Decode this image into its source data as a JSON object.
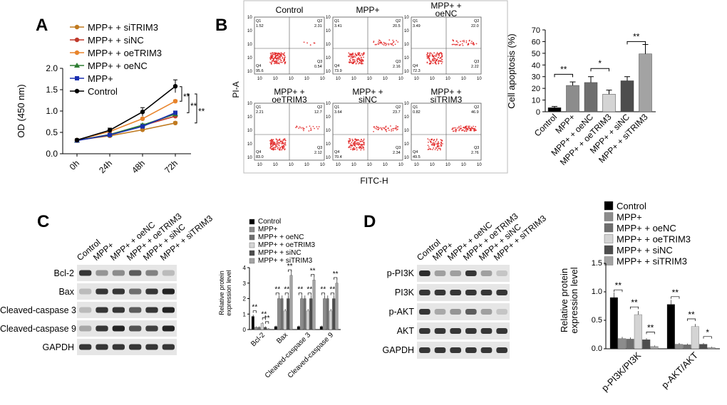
{
  "panels": {
    "a": "A",
    "b": "B",
    "c": "C",
    "d": "D"
  },
  "panel_a": {
    "legend": [
      "MPP+ + siTRIM3",
      "MPP+ + siNC",
      "MPP+ + oeTRIM3",
      "MPP+ + oeNC",
      "MPP+",
      "Control"
    ],
    "sig": [
      "**",
      "**",
      "**"
    ]
  },
  "panel_b": {
    "flow_titles": [
      "Control",
      "MPP+",
      "MPP+ + oeNC",
      "MPP+ + oeTRIM3",
      "MPP+ + siNC",
      "MPP+ + siTRIM3"
    ],
    "quadrants": [
      [
        "1.52",
        "2.31",
        "95.6",
        "0.54"
      ],
      [
        "3.41",
        "20.5",
        "73.9",
        "2.16"
      ],
      [
        "3.49",
        "22.0",
        "72.3",
        "2.22"
      ],
      [
        "2.21",
        "12.7",
        "83.0",
        "2.12"
      ],
      [
        "3.64",
        "23.7",
        "70.4",
        "2.34"
      ],
      [
        "0.82",
        "46.9",
        "49.5",
        "2.76"
      ]
    ],
    "quad_labels": [
      "Q1",
      "Q2",
      "Q4",
      "Q3"
    ],
    "y_axis": "PI-A",
    "x_axis": "FITC-H",
    "sig": [
      "**",
      "*",
      "**"
    ]
  },
  "panel_c": {
    "lanes": [
      "Control",
      "MPP+",
      "MPP+ + oeNC",
      "MPP+ + oeTRIM3",
      "MPP+ + siNC",
      "MPP+ + siTRIM3"
    ],
    "blots": [
      "Bcl-2",
      "Bax",
      "Cleaved-caspase 3",
      "Cleaved-caspase 9",
      "GAPDH"
    ],
    "legend": [
      "Control",
      "MPP+",
      "MPP+ + oeNC",
      "MPP+ + oeTRIM3",
      "MPP+ + siNC",
      "MPP+ + siTRIM3"
    ]
  },
  "panel_d": {
    "lanes": [
      "Control",
      "MPP+",
      "MPP+ + oeNC",
      "MPP+ + oeTRIM3",
      "MPP+ + siNC",
      "MPP+ + siTRIM3"
    ],
    "blots": [
      "p-PI3K",
      "PI3K",
      "p-AKT",
      "AKT",
      "GAPDH"
    ],
    "legend": [
      "Control",
      "MPP+",
      "MPP+ + oeNC",
      "MPP+ + oeTRIM3",
      "MPP+ + siNC",
      "MPP+ + siTRIM3"
    ]
  },
  "colors": {
    "control": "#000000",
    "mpp": "#8c8c8c",
    "oenc": "#6e6e6e",
    "oetrim3": "#d4d4d4",
    "sinc": "#4d4d4d",
    "sitrim3": "#a3a3a3",
    "line_sitrim3": "#c07a20",
    "line_sinc": "#c0392b",
    "line_oetrim3": "#e8842c",
    "line_oenc": "#2e7d32",
    "line_mpp": "#1a2fb0",
    "line_control": "#000000",
    "flow_dot": "#e02020"
  },
  "chart_data": [
    {
      "type": "line",
      "title": "",
      "xlabel": "",
      "ylabel": "OD (450 nm)",
      "categories": [
        "0h",
        "24h",
        "48h",
        "72h"
      ],
      "ylim": [
        0,
        2.0
      ],
      "yticks": [
        "0.0",
        "0.5",
        "1.0",
        "1.5",
        "2.0"
      ],
      "series": [
        {
          "name": "MPP+ + siTRIM3",
          "values": [
            0.32,
            0.42,
            0.56,
            0.72
          ]
        },
        {
          "name": "MPP+ + siNC",
          "values": [
            0.31,
            0.45,
            0.66,
            0.88
          ]
        },
        {
          "name": "MPP+ + oeTRIM3",
          "values": [
            0.32,
            0.52,
            0.82,
            1.23
          ]
        },
        {
          "name": "MPP+ + oeNC",
          "values": [
            0.31,
            0.45,
            0.67,
            0.93
          ]
        },
        {
          "name": "MPP+",
          "values": [
            0.31,
            0.44,
            0.64,
            0.96
          ]
        },
        {
          "name": "Control",
          "values": [
            0.32,
            0.55,
            0.98,
            1.58
          ]
        }
      ]
    },
    {
      "type": "bar",
      "title": "",
      "xlabel": "",
      "ylabel": "Cell apoptosis (%)",
      "categories": [
        "Control",
        "MPP+",
        "MPP+ + oeNC",
        "MPP+ + oeTRIM3",
        "MPP+ + siNC",
        "MPP+ + siTRIM3"
      ],
      "values": [
        3.5,
        22.5,
        25,
        15,
        26.5,
        49.5
      ],
      "errors": [
        1,
        3,
        5,
        3.5,
        3.5,
        8
      ],
      "ylim": [
        0,
        70
      ],
      "yticks": [
        "0",
        "10",
        "20",
        "30",
        "40",
        "50",
        "60",
        "70"
      ]
    },
    {
      "type": "bar",
      "title": "",
      "xlabel": "",
      "ylabel": "Relative protein expression level",
      "categories": [
        "Bcl-2",
        "Bax",
        "Cleaved-caspase 3",
        "Cleaved-caspase 9"
      ],
      "ylim": [
        0,
        4
      ],
      "yticks": [
        "0",
        "1",
        "2",
        "3",
        "4"
      ],
      "series": [
        {
          "name": "Control",
          "values": [
            0.85,
            0.2,
            0.2,
            0.2
          ]
        },
        {
          "name": "MPP+",
          "values": [
            0.15,
            2.0,
            2.0,
            2.0
          ]
        },
        {
          "name": "MPP+ + oeNC",
          "values": [
            0.15,
            2.0,
            2.0,
            2.0
          ]
        },
        {
          "name": "MPP+ + oeTRIM3",
          "values": [
            0.4,
            1.2,
            1.2,
            1.2
          ]
        },
        {
          "name": "MPP+ + siNC",
          "values": [
            0.15,
            2.0,
            2.0,
            2.0
          ]
        },
        {
          "name": "MPP+ + siTRIM3",
          "values": [
            0.05,
            3.5,
            3.2,
            3.0
          ]
        }
      ]
    },
    {
      "type": "bar",
      "title": "",
      "xlabel": "",
      "ylabel": "Relative protein expression level",
      "categories": [
        "p-PI3K/PI3K",
        "p-AKT/AKT"
      ],
      "ylim": [
        0,
        1.5
      ],
      "yticks": [
        "0.0",
        "0.5",
        "1.0",
        "1.5"
      ],
      "series": [
        {
          "name": "Control",
          "values": [
            0.9,
            0.78
          ]
        },
        {
          "name": "MPP+",
          "values": [
            0.18,
            0.08
          ]
        },
        {
          "name": "MPP+ + oeNC",
          "values": [
            0.17,
            0.07
          ]
        },
        {
          "name": "MPP+ + oeTRIM3",
          "values": [
            0.6,
            0.39
          ]
        },
        {
          "name": "MPP+ + siNC",
          "values": [
            0.16,
            0.08
          ]
        },
        {
          "name": "MPP+ + siTRIM3",
          "values": [
            0.04,
            0.02
          ]
        }
      ]
    }
  ]
}
